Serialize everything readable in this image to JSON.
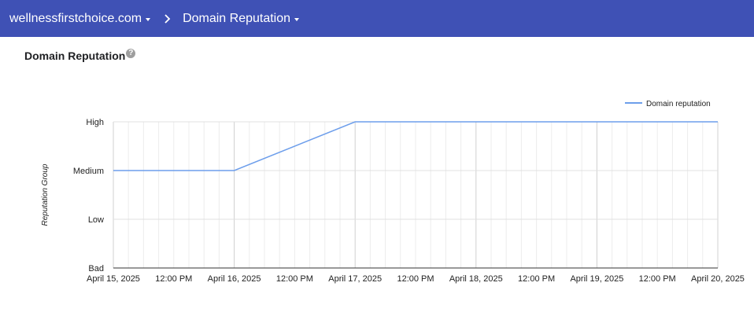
{
  "header": {
    "domain": "wellnessfirstchoice.com",
    "section": "Domain Reputation"
  },
  "page": {
    "title": "Domain Reputation",
    "help_symbol": "?"
  },
  "colors": {
    "header_bg": "#3f51b5",
    "series_line": "#6d9eeb"
  },
  "chart_data": {
    "type": "line",
    "title": "",
    "xlabel": "",
    "ylabel": "Reputation Group",
    "y_categories": [
      "Bad",
      "Low",
      "Medium",
      "High"
    ],
    "x_ticks": [
      "April 15, 2025",
      "12:00 PM",
      "April 16, 2025",
      "12:00 PM",
      "April 17, 2025",
      "12:00 PM",
      "April 18, 2025",
      "12:00 PM",
      "April 19, 2025",
      "12:00 PM",
      "April 20, 2025"
    ],
    "x_range": [
      "2025-04-15",
      "2025-04-20"
    ],
    "grid": true,
    "legend_position": "top-right",
    "series": [
      {
        "name": "Domain reputation",
        "x": [
          "2025-04-15",
          "2025-04-16",
          "2025-04-17",
          "2025-04-18",
          "2025-04-19",
          "2025-04-20"
        ],
        "values": [
          "Medium",
          "Medium",
          "High",
          "High",
          "High",
          "High"
        ]
      }
    ]
  }
}
